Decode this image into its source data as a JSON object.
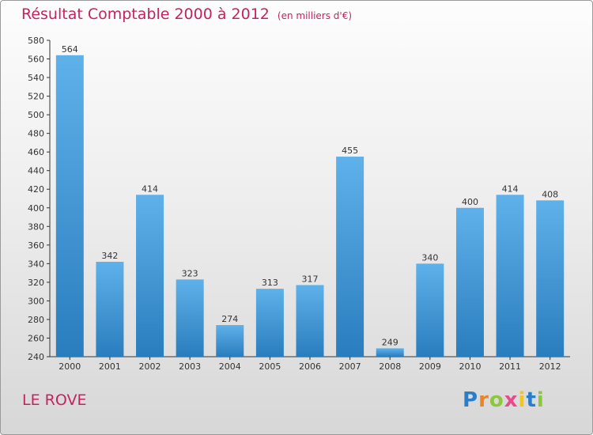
{
  "title": "Résultat Comptable 2000 à 2012",
  "unit": "(en milliers d'€)",
  "commune": "LE ROVE",
  "logo": {
    "text": "Proxiti",
    "letters": [
      "P",
      "r",
      "o",
      "x",
      "i",
      "t",
      "i"
    ],
    "colors": [
      "#2a7dc9",
      "#e8842a",
      "#8dc63f",
      "#e84a8a",
      "#f2c51f",
      "#2a7dc9",
      "#8dc63f"
    ]
  },
  "colors": {
    "title": "#c4245e",
    "bar_top": "#5fb1ea",
    "bar_bottom": "#2a7dbd",
    "axis": "#333333"
  },
  "chart_data": {
    "type": "bar",
    "title": "Résultat Comptable 2000 à 2012",
    "subtitle": "(en milliers d'€)",
    "categories": [
      "2000",
      "2001",
      "2002",
      "2003",
      "2004",
      "2005",
      "2006",
      "2007",
      "2008",
      "2009",
      "2010",
      "2011",
      "2012"
    ],
    "values": [
      564,
      342,
      414,
      323,
      274,
      313,
      317,
      455,
      249,
      340,
      400,
      414,
      408
    ],
    "ylim": [
      240,
      580
    ],
    "yticks": [
      240,
      260,
      280,
      300,
      320,
      340,
      360,
      380,
      400,
      420,
      440,
      460,
      480,
      500,
      520,
      540,
      560,
      580
    ],
    "grid": false,
    "data_labels": true
  }
}
